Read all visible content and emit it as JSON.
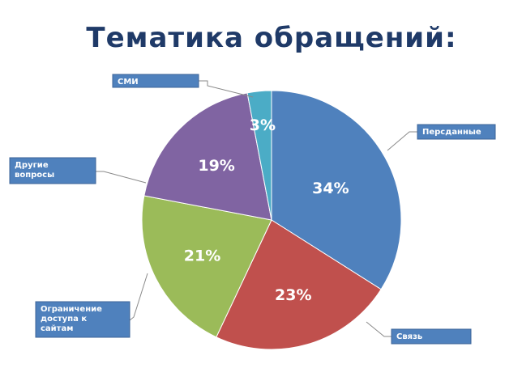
{
  "chart_data": {
    "type": "pie",
    "title": "Тематика обращений:",
    "categories": [
      "Персданные",
      "Связь",
      "Ограничение доступа к сайтам",
      "Другие вопросы",
      "СМИ"
    ],
    "values": [
      34,
      23,
      21,
      19,
      3
    ],
    "value_labels": [
      "34%",
      "23%",
      "21%",
      "19%",
      "3%"
    ],
    "colors": [
      "#4f81bd",
      "#c0504d",
      "#9bbb59",
      "#8064a2",
      "#4bacc6"
    ],
    "start": "12 o'clock",
    "direction": "clockwise",
    "legend": "callout boxes"
  }
}
